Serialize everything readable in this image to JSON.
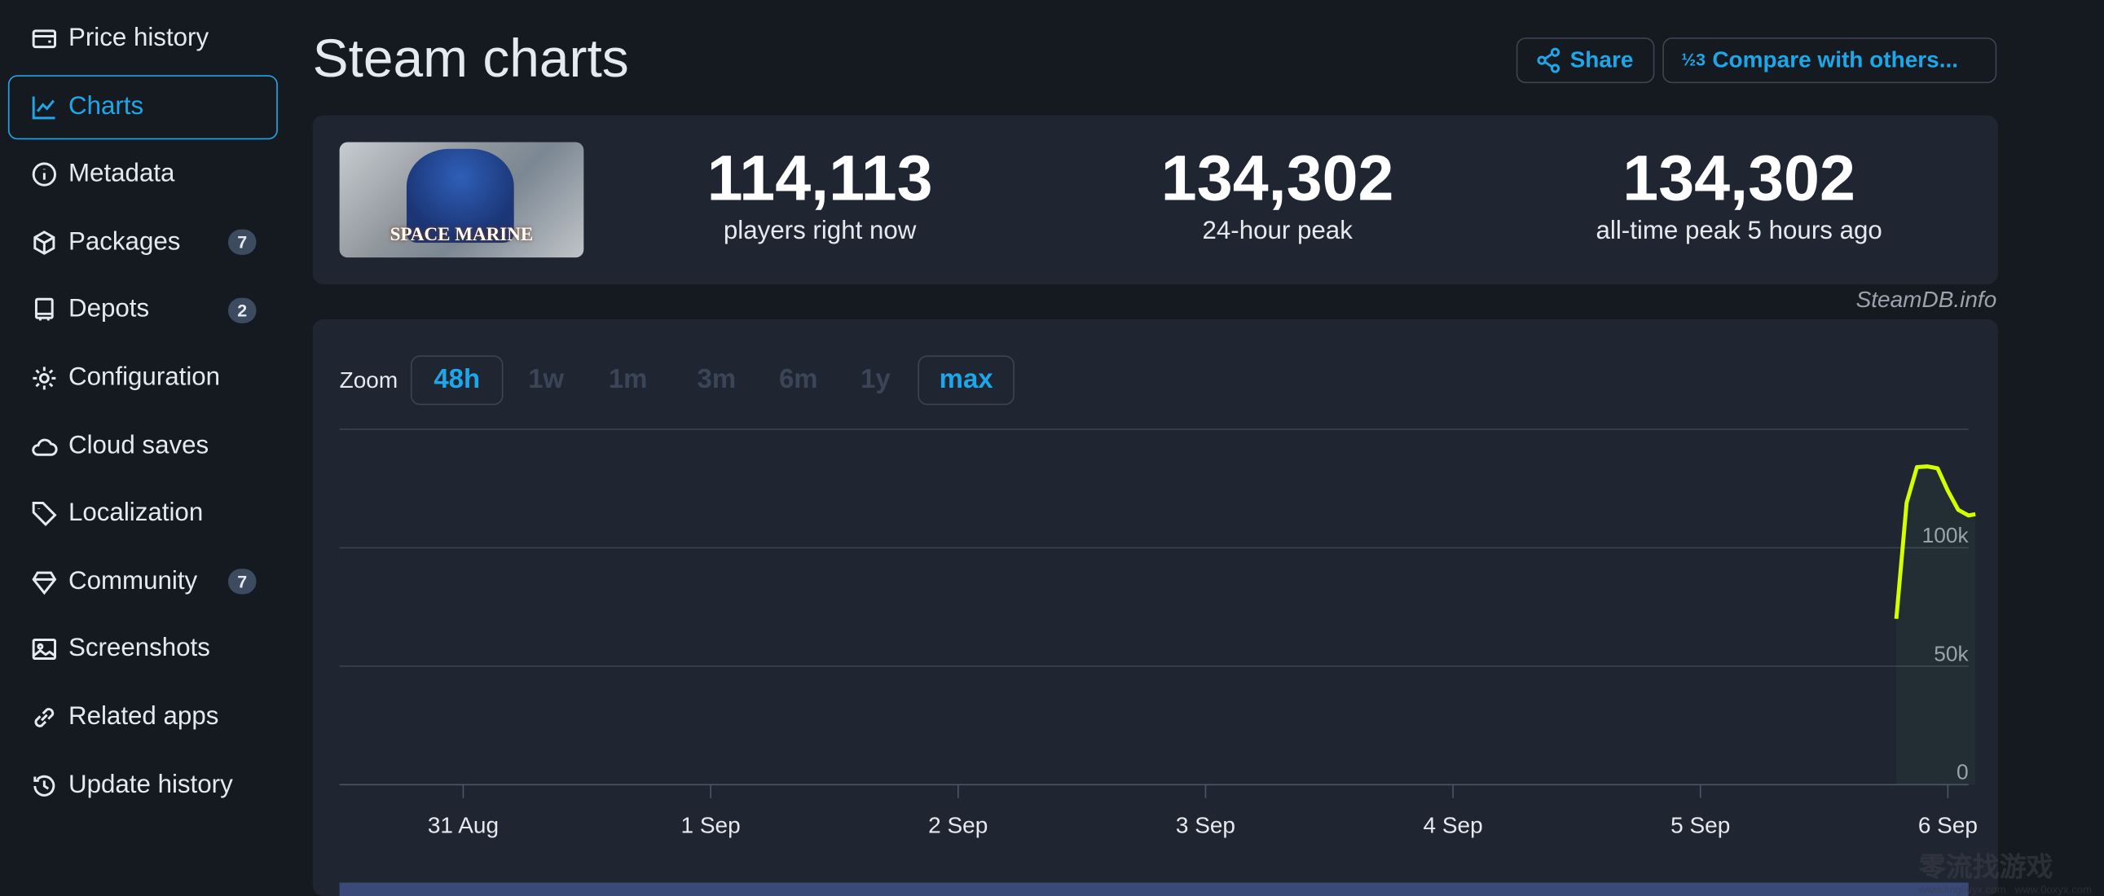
{
  "sidebar": {
    "items": [
      {
        "label": "Price history",
        "icon": "wallet-icon"
      },
      {
        "label": "Charts",
        "icon": "chart-line-icon",
        "active": true
      },
      {
        "label": "Metadata",
        "icon": "info-icon"
      },
      {
        "label": "Packages",
        "icon": "box-icon",
        "badge": "7"
      },
      {
        "label": "Depots",
        "icon": "server-icon",
        "badge": "2"
      },
      {
        "label": "Configuration",
        "icon": "gear-icon"
      },
      {
        "label": "Cloud saves",
        "icon": "cloud-icon"
      },
      {
        "label": "Localization",
        "icon": "tag-icon"
      },
      {
        "label": "Community",
        "icon": "diamond-icon",
        "badge": "7"
      },
      {
        "label": "Screenshots",
        "icon": "image-icon"
      },
      {
        "label": "Related apps",
        "icon": "link-icon"
      },
      {
        "label": "Update history",
        "icon": "history-icon"
      }
    ]
  },
  "header": {
    "title": "Steam charts",
    "share_label": "Share",
    "compare_label": "Compare with others..."
  },
  "game": {
    "cover_text": "SPACE MARINE"
  },
  "stats": [
    {
      "value": "114,113",
      "label": "players right now"
    },
    {
      "value": "134,302",
      "label": "24-hour peak"
    },
    {
      "value": "134,302",
      "label": "all-time peak 5 hours ago"
    }
  ],
  "credit": "SteamDB.info",
  "zoom": {
    "label": "Zoom",
    "options": [
      {
        "label": "48h",
        "active": true
      },
      {
        "label": "1w"
      },
      {
        "label": "1m"
      },
      {
        "label": "3m"
      },
      {
        "label": "6m"
      },
      {
        "label": "1y"
      },
      {
        "label": "max",
        "active": true
      }
    ]
  },
  "colors": {
    "accent": "#1ea7e8",
    "line": "#d4ff00",
    "background": "#151920",
    "panel": "#1f2631"
  },
  "watermark": "www.lingliuyx.com  www.0oxyx.com",
  "chart_data": {
    "type": "line",
    "x_ticks": [
      "31 Aug",
      "1 Sep",
      "2 Sep",
      "3 Sep",
      "4 Sep",
      "5 Sep",
      "6 Sep"
    ],
    "y_ticks": [
      "0",
      "50k",
      "100k"
    ],
    "ylim": [
      0,
      150000
    ],
    "xlim": [
      "2024-08-30 12:00",
      "2024-09-06 02:00"
    ],
    "grid": true,
    "series": [
      {
        "points": [
          [
            "2024-09-05 19:00",
            70000
          ],
          [
            "2024-09-05 20:00",
            119000
          ],
          [
            "2024-09-05 21:00",
            134000
          ],
          [
            "2024-09-05 22:00",
            134302
          ],
          [
            "2024-09-05 23:00",
            133500
          ],
          [
            "2024-09-06 00:00",
            124000
          ],
          [
            "2024-09-06 01:00",
            116000
          ],
          [
            "2024-09-06 02:00",
            113600
          ],
          [
            "2024-09-06 02:40",
            114113
          ]
        ]
      }
    ]
  }
}
